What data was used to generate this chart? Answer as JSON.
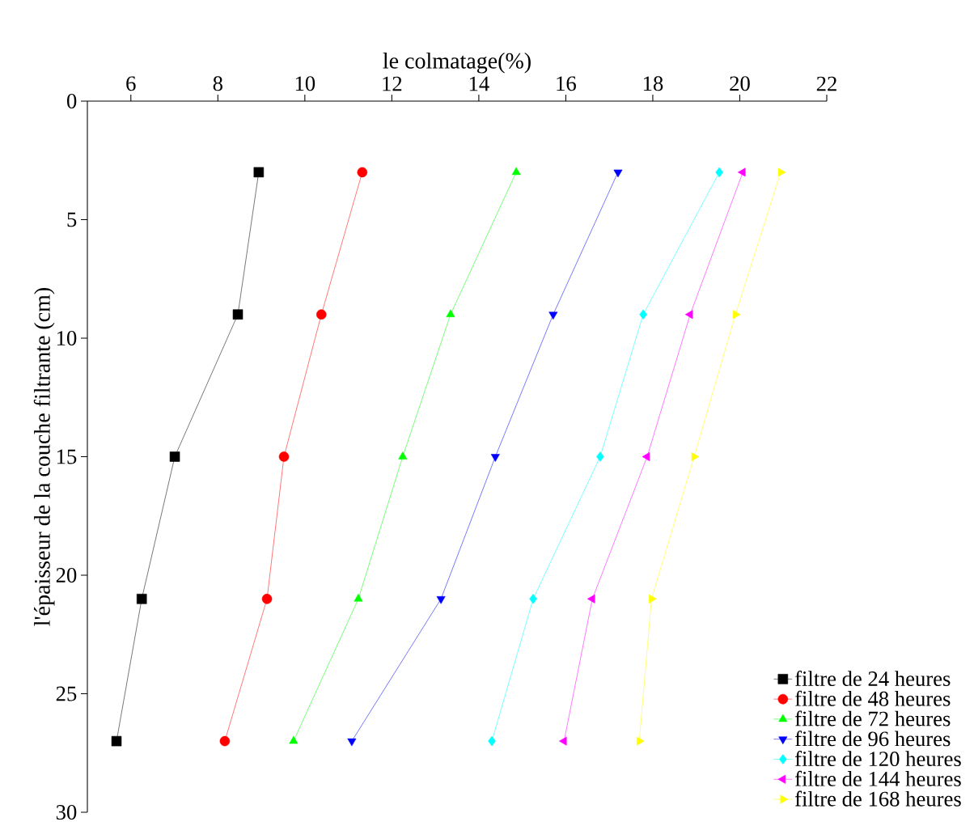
{
  "chart_data": {
    "type": "line",
    "xlabel": "le colmatage(%)",
    "ylabel": "l'épaisseur de la couche filtrante (cm)",
    "series": [
      {
        "name": "filtre de 24 heures",
        "color": "#000000",
        "marker": "square",
        "x": [
          8.94,
          8.46,
          7.01,
          6.25,
          5.67
        ],
        "values": [
          3,
          9,
          15,
          21,
          27
        ]
      },
      {
        "name": "filtre de 48 heures",
        "color": "#ff0000",
        "marker": "circle",
        "x": [
          11.32,
          10.38,
          9.52,
          9.13,
          8.16
        ],
        "values": [
          3,
          9,
          15,
          21,
          27
        ]
      },
      {
        "name": "filtre de 72 heures",
        "color": "#00ff00",
        "marker": "triangle",
        "x": [
          14.86,
          13.35,
          12.25,
          11.23,
          9.74
        ],
        "values": [
          3,
          9,
          15,
          21,
          27
        ]
      },
      {
        "name": "filtre de 96 heures",
        "color": "#0000ff",
        "marker": "triangle-down",
        "x": [
          17.2,
          15.71,
          14.38,
          13.13,
          11.08
        ],
        "values": [
          3,
          9,
          15,
          21,
          27
        ]
      },
      {
        "name": "filtre de 120 heures",
        "color": "#00ffff",
        "marker": "diamond",
        "x": [
          19.53,
          17.78,
          16.79,
          15.25,
          14.3
        ],
        "values": [
          3,
          9,
          15,
          21,
          27
        ]
      },
      {
        "name": "filtre de 144 heures",
        "color": "#ff00ff",
        "marker": "triangle-left",
        "x": [
          20.07,
          18.86,
          17.87,
          16.61,
          15.96
        ],
        "values": [
          3,
          9,
          15,
          21,
          27
        ]
      },
      {
        "name": "filtre de 168 heures",
        "color": "#ffff00",
        "marker": "triangle-right",
        "x": [
          20.94,
          19.9,
          18.95,
          17.97,
          17.69
        ],
        "values": [
          3,
          9,
          15,
          21,
          27
        ]
      }
    ],
    "xlim": [
      5,
      22
    ],
    "xticks": [
      6,
      8,
      10,
      12,
      14,
      16,
      18,
      20,
      22
    ],
    "ylim": [
      30,
      0
    ],
    "yticks": [
      0,
      5,
      10,
      15,
      20,
      25,
      30
    ],
    "legend": "bottom right",
    "grid": false,
    "line_style": "solid"
  }
}
